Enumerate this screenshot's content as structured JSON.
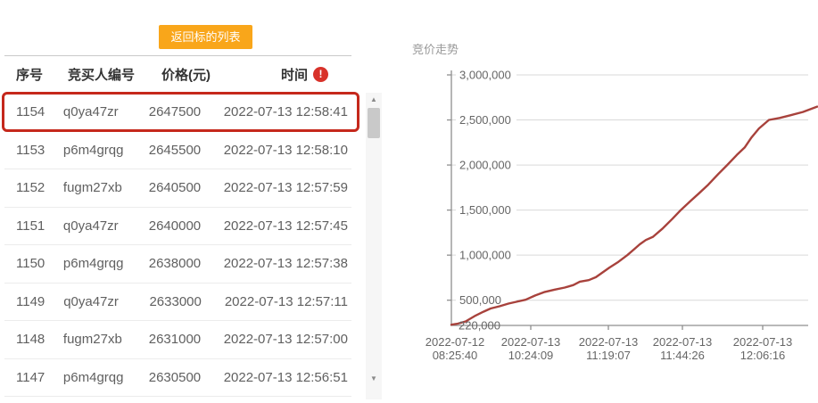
{
  "colors": {
    "accent_orange": "#f9a61a",
    "alert_red": "#d8322a",
    "highlight_border": "#c5281c",
    "line_red": "#a8423c",
    "grid_gray": "#d9d9d9",
    "axis_gray": "#8f8f8f",
    "text_gray": "#666666"
  },
  "toolbar": {
    "back_button_label": "返回标的列表"
  },
  "table": {
    "headers": {
      "seq": "序号",
      "bidder": "竞买人编号",
      "price": "价格(元)",
      "time": "时间"
    },
    "time_alert_icon": "!",
    "rows": [
      {
        "seq": "1154",
        "bidder": "q0ya47zr",
        "price": "2647500",
        "time": "2022-07-13 12:58:41",
        "highlighted": true
      },
      {
        "seq": "1153",
        "bidder": "p6m4grqg",
        "price": "2645500",
        "time": "2022-07-13 12:58:10",
        "highlighted": false
      },
      {
        "seq": "1152",
        "bidder": "fugm27xb",
        "price": "2640500",
        "time": "2022-07-13 12:57:59",
        "highlighted": false
      },
      {
        "seq": "1151",
        "bidder": "q0ya47zr",
        "price": "2640000",
        "time": "2022-07-13 12:57:45",
        "highlighted": false
      },
      {
        "seq": "1150",
        "bidder": "p6m4grqg",
        "price": "2638000",
        "time": "2022-07-13 12:57:38",
        "highlighted": false
      },
      {
        "seq": "1149",
        "bidder": "q0ya47zr",
        "price": "2633000",
        "time": "2022-07-13 12:57:11",
        "highlighted": false
      },
      {
        "seq": "1148",
        "bidder": "fugm27xb",
        "price": "2631000",
        "time": "2022-07-13 12:57:00",
        "highlighted": false
      },
      {
        "seq": "1147",
        "bidder": "p6m4grqg",
        "price": "2630500",
        "time": "2022-07-13 12:56:51",
        "highlighted": false
      }
    ]
  },
  "chart_data": {
    "type": "line",
    "title": "竞价走势",
    "ylabel": "",
    "xlabel": "",
    "ylim": [
      220000,
      3000000
    ],
    "grid": true,
    "yticks": [
      500000,
      1000000,
      1500000,
      2000000,
      2500000,
      3000000
    ],
    "ytick_labels": [
      "500,000",
      "1,000,000",
      "1,500,000",
      "2,000,000",
      "2,500,000",
      "3,000,000"
    ],
    "baseline_value": 220000,
    "baseline_label": "220,000",
    "xticks": [
      {
        "frac": 0.01,
        "line1": "2022-07-12",
        "line2": "08:25:40",
        "tick": false
      },
      {
        "frac": 0.2225,
        "line1": "2022-07-13",
        "line2": "10:24:09",
        "tick": true
      },
      {
        "frac": 0.44,
        "line1": "2022-07-13",
        "line2": "11:19:07",
        "tick": true
      },
      {
        "frac": 0.6475,
        "line1": "2022-07-13",
        "line2": "11:44:26",
        "tick": true
      },
      {
        "frac": 0.8725,
        "line1": "2022-07-13",
        "line2": "12:06:16",
        "tick": true
      }
    ],
    "series": [
      {
        "name": "竞价走势",
        "color": "#a8423c",
        "points": [
          [
            0.0,
            228000
          ],
          [
            0.018,
            240000
          ],
          [
            0.04,
            265000
          ],
          [
            0.068,
            330000
          ],
          [
            0.09,
            372000
          ],
          [
            0.11,
            408000
          ],
          [
            0.135,
            433000
          ],
          [
            0.16,
            462000
          ],
          [
            0.182,
            482000
          ],
          [
            0.208,
            505000
          ],
          [
            0.235,
            552000
          ],
          [
            0.262,
            592000
          ],
          [
            0.29,
            618000
          ],
          [
            0.318,
            640000
          ],
          [
            0.342,
            668000
          ],
          [
            0.36,
            706000
          ],
          [
            0.385,
            723000
          ],
          [
            0.405,
            755000
          ],
          [
            0.443,
            862000
          ],
          [
            0.468,
            925000
          ],
          [
            0.493,
            1000000
          ],
          [
            0.512,
            1065000
          ],
          [
            0.528,
            1120000
          ],
          [
            0.545,
            1168000
          ],
          [
            0.565,
            1203000
          ],
          [
            0.592,
            1295000
          ],
          [
            0.62,
            1405000
          ],
          [
            0.643,
            1500000
          ],
          [
            0.67,
            1600000
          ],
          [
            0.693,
            1682000
          ],
          [
            0.72,
            1782000
          ],
          [
            0.748,
            1900000
          ],
          [
            0.773,
            2000000
          ],
          [
            0.8,
            2112000
          ],
          [
            0.822,
            2195000
          ],
          [
            0.84,
            2300000
          ],
          [
            0.862,
            2405000
          ],
          [
            0.89,
            2500000
          ],
          [
            0.92,
            2522000
          ],
          [
            0.95,
            2552000
          ],
          [
            0.985,
            2588000
          ],
          [
            1.025,
            2647500
          ]
        ]
      }
    ]
  }
}
